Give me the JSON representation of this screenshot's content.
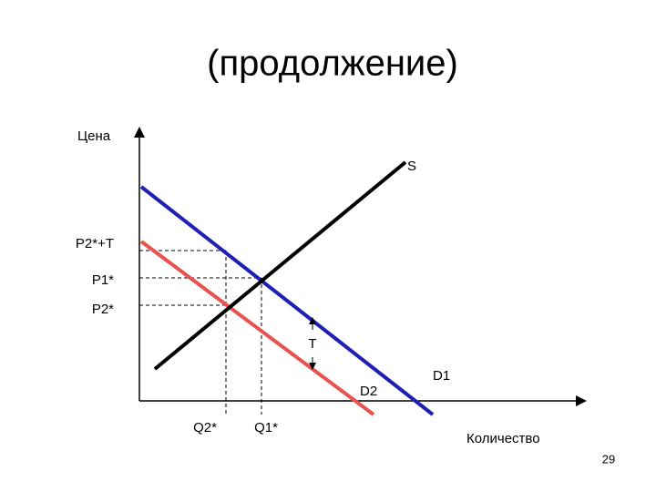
{
  "header": {
    "title": "(продолжение)"
  },
  "axes": {
    "y_label": "Цена",
    "x_label": "Количество"
  },
  "curves": {
    "supply": "S",
    "demand1": "D1",
    "demand2": "D2"
  },
  "price_labels": [
    "P2*+T",
    "P1*",
    "P2*"
  ],
  "quantity_labels": [
    "Q2*",
    "Q1*"
  ],
  "tax_label": "T",
  "page_number": "29"
}
